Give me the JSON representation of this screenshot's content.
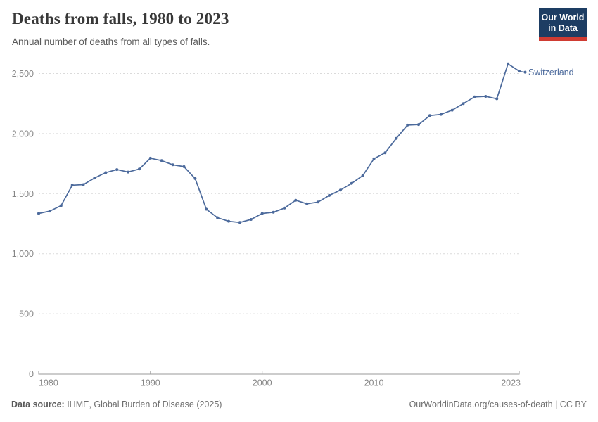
{
  "header": {
    "title": "Deaths from falls, 1980 to 2023",
    "subtitle": "Annual number of deaths from all types of falls.",
    "logo_line1": "Our World",
    "logo_line2": "in Data"
  },
  "chart_data": {
    "type": "line",
    "title": "Deaths from falls, 1980 to 2023",
    "subtitle": "Annual number of deaths from all types of falls.",
    "grid": "horizontal-dashed",
    "legend_position": "end-of-line-label",
    "xlim": [
      1980,
      2023
    ],
    "ylim": [
      0,
      2500
    ],
    "xticks": [
      1980,
      1990,
      2000,
      2010,
      2023
    ],
    "yticks": [
      0,
      500,
      1000,
      1500,
      2000,
      2500
    ],
    "x": [
      1980,
      1981,
      1982,
      1983,
      1984,
      1985,
      1986,
      1987,
      1988,
      1989,
      1990,
      1991,
      1992,
      1993,
      1994,
      1995,
      1996,
      1997,
      1998,
      1999,
      2000,
      2001,
      2002,
      2003,
      2004,
      2005,
      2006,
      2007,
      2008,
      2009,
      2010,
      2011,
      2012,
      2013,
      2014,
      2015,
      2016,
      2017,
      2018,
      2019,
      2020,
      2021,
      2022,
      2023
    ],
    "series": [
      {
        "name": "Switzerland",
        "color": "#4c6a9c",
        "values": [
          1335,
          1355,
          1400,
          1570,
          1575,
          1630,
          1675,
          1700,
          1680,
          1705,
          1795,
          1775,
          1740,
          1725,
          1625,
          1370,
          1300,
          1270,
          1260,
          1285,
          1335,
          1345,
          1380,
          1445,
          1415,
          1430,
          1485,
          1530,
          1585,
          1650,
          1790,
          1840,
          1960,
          2070,
          2075,
          2150,
          2160,
          2195,
          2250,
          2305,
          2310,
          2290,
          2580,
          2520
        ]
      }
    ]
  },
  "footer": {
    "source_label": "Data source:",
    "source_text": " IHME, Global Burden of Disease (2025)",
    "link": "OurWorldinData.org/causes-of-death | CC BY"
  },
  "colors": {
    "line": "#4c6a9c",
    "gridline": "#dadada",
    "axis": "#9a9a9a",
    "logo_bg": "#1d3d63",
    "logo_red": "#cf3b32"
  }
}
